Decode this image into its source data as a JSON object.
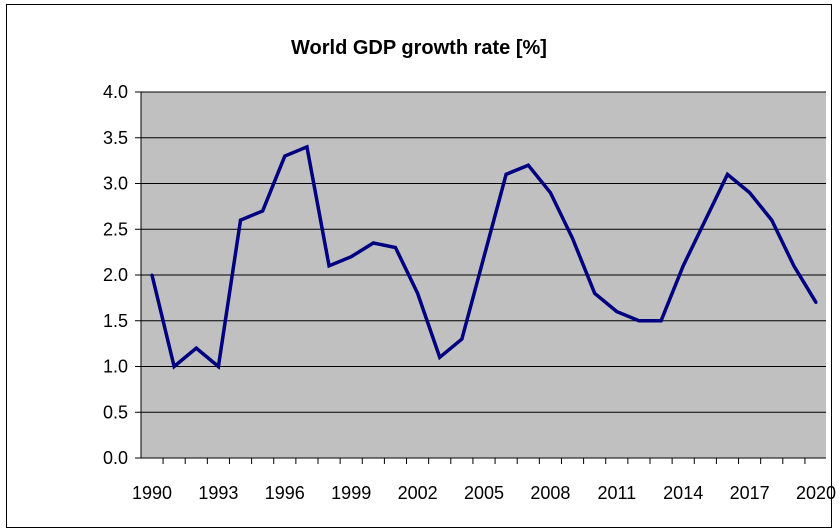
{
  "chart_data": {
    "type": "line",
    "title": "World GDP growth rate [%]",
    "xlabel": "",
    "ylabel": "",
    "x": [
      1990,
      1991,
      1992,
      1993,
      1994,
      1995,
      1996,
      1997,
      1998,
      1999,
      2000,
      2001,
      2002,
      2003,
      2004,
      2005,
      2006,
      2007,
      2008,
      2009,
      2010,
      2011,
      2012,
      2013,
      2014,
      2015,
      2016,
      2017,
      2018,
      2019,
      2020
    ],
    "series": [
      {
        "values": [
          2.0,
          1.0,
          1.2,
          1.0,
          2.6,
          2.7,
          3.3,
          3.4,
          2.1,
          2.2,
          2.35,
          2.3,
          1.8,
          1.1,
          1.3,
          2.2,
          3.1,
          3.2,
          2.9,
          2.4,
          1.8,
          1.6,
          1.5,
          1.5,
          2.1,
          2.6,
          3.1,
          2.9,
          2.6,
          2.1,
          1.7
        ]
      }
    ],
    "ylim": [
      0.0,
      4.0
    ],
    "y_ticks": [
      "0.0",
      "0.5",
      "1.0",
      "1.5",
      "2.0",
      "2.5",
      "3.0",
      "3.5",
      "4.0"
    ],
    "x_ticks": [
      "1990",
      "1993",
      "1996",
      "1999",
      "2002",
      "2005",
      "2008",
      "2011",
      "2014",
      "2017",
      "2020"
    ],
    "grid": true,
    "legend": "none",
    "colors": {
      "line": "#000080",
      "plot_background": "#c0c0c0",
      "gridline": "#000000"
    }
  }
}
